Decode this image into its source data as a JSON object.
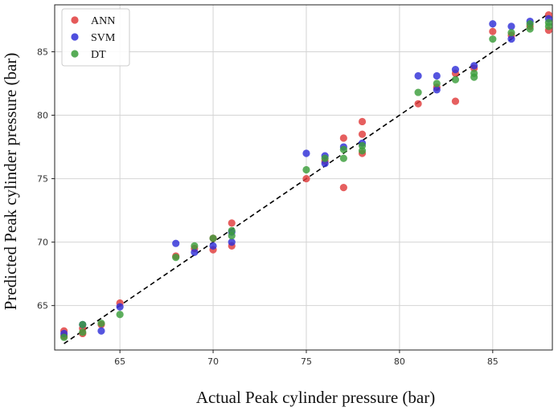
{
  "chart_data": {
    "type": "scatter",
    "title": "",
    "xlabel": "Actual Peak cylinder pressure (bar)",
    "ylabel": "Predicted Peak cylinder pressure (bar)",
    "xlim": [
      61.5,
      88.2
    ],
    "ylim": [
      61.5,
      88.7
    ],
    "xticks": [
      65,
      70,
      75,
      80,
      85
    ],
    "yticks": [
      65,
      70,
      75,
      80,
      85
    ],
    "grid": true,
    "legend_position": "top-left",
    "reference_line": {
      "style": "dashed",
      "color": "#000000",
      "from": [
        62,
        62
      ],
      "to": [
        88,
        88
      ]
    },
    "series": [
      {
        "name": "ANN",
        "color": "#e03c3c",
        "points": [
          [
            62,
            63.0
          ],
          [
            62,
            62.6
          ],
          [
            63,
            63.2
          ],
          [
            63,
            62.8
          ],
          [
            64,
            63.5
          ],
          [
            65,
            65.2
          ],
          [
            68,
            68.9
          ],
          [
            69,
            69.5
          ],
          [
            70,
            69.4
          ],
          [
            70,
            70.3
          ],
          [
            71,
            71.5
          ],
          [
            71,
            69.7
          ],
          [
            75,
            75.0
          ],
          [
            76,
            76.4
          ],
          [
            77,
            74.3
          ],
          [
            77,
            78.2
          ],
          [
            78,
            79.5
          ],
          [
            78,
            78.5
          ],
          [
            78,
            77.0
          ],
          [
            81,
            80.9
          ],
          [
            82,
            82.2
          ],
          [
            83,
            81.1
          ],
          [
            83,
            83.3
          ],
          [
            84,
            83.7
          ],
          [
            85,
            86.6
          ],
          [
            86,
            86.3
          ],
          [
            87,
            87.0
          ],
          [
            88,
            87.9
          ],
          [
            88,
            86.7
          ]
        ]
      },
      {
        "name": "SVM",
        "color": "#3030d8",
        "points": [
          [
            62,
            62.8
          ],
          [
            63,
            63.5
          ],
          [
            64,
            63.0
          ],
          [
            65,
            64.9
          ],
          [
            68,
            69.9
          ],
          [
            69,
            69.2
          ],
          [
            70,
            69.7
          ],
          [
            71,
            70.0
          ],
          [
            71,
            70.8
          ],
          [
            75,
            77.0
          ],
          [
            76,
            76.8
          ],
          [
            76,
            76.2
          ],
          [
            77,
            77.5
          ],
          [
            78,
            77.8
          ],
          [
            81,
            83.1
          ],
          [
            82,
            83.1
          ],
          [
            82,
            82.0
          ],
          [
            83,
            83.6
          ],
          [
            84,
            83.9
          ],
          [
            85,
            87.2
          ],
          [
            86,
            87.0
          ],
          [
            86,
            86.0
          ],
          [
            87,
            87.4
          ],
          [
            88,
            87.6
          ]
        ]
      },
      {
        "name": "DT",
        "color": "#3a9e3a",
        "points": [
          [
            62,
            62.5
          ],
          [
            63,
            63.5
          ],
          [
            63,
            62.9
          ],
          [
            64,
            63.6
          ],
          [
            65,
            64.3
          ],
          [
            68,
            68.8
          ],
          [
            69,
            69.7
          ],
          [
            70,
            70.3
          ],
          [
            71,
            70.5
          ],
          [
            71,
            70.9
          ],
          [
            75,
            75.7
          ],
          [
            76,
            76.6
          ],
          [
            77,
            76.6
          ],
          [
            77,
            77.3
          ],
          [
            78,
            77.2
          ],
          [
            78,
            77.6
          ],
          [
            81,
            81.8
          ],
          [
            82,
            82.5
          ],
          [
            83,
            82.8
          ],
          [
            84,
            83.3
          ],
          [
            84,
            83.0
          ],
          [
            85,
            86.0
          ],
          [
            86,
            86.5
          ],
          [
            87,
            87.2
          ],
          [
            87,
            86.8
          ],
          [
            88,
            87.3
          ],
          [
            88,
            87.0
          ]
        ]
      }
    ]
  }
}
